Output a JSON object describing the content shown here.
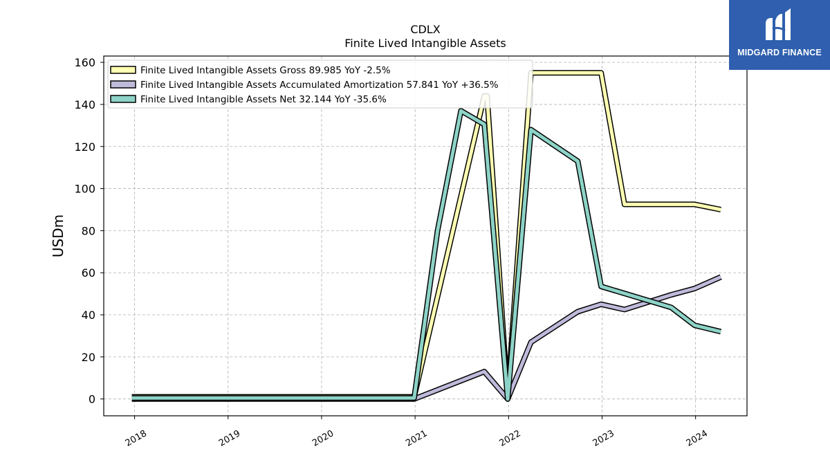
{
  "logo": {
    "text": "MIDGARD FINANCE",
    "background": "#2f5fae"
  },
  "chart_data": {
    "type": "line",
    "title": "CDLX",
    "subtitle": "Finite Lived Intangible Assets",
    "ylabel": "USDm",
    "xlabel": "",
    "ylim": [
      -8,
      163
    ],
    "xlim": [
      2017.67,
      2024.55
    ],
    "yticks": [
      0,
      20,
      40,
      60,
      80,
      100,
      120,
      140,
      160
    ],
    "xticks": [
      "2018",
      "2019",
      "2020",
      "2021",
      "2022",
      "2023",
      "2024"
    ],
    "grid": true,
    "legend_position": "top-left",
    "series": [
      {
        "name": "Finite Lived Intangible Assets Gross  89.985 YoY -2.5%",
        "color": "#ffffb3",
        "points": [
          [
            2017.97,
            1.0
          ],
          [
            2020.99,
            1.0
          ],
          [
            2021.74,
            144.0
          ],
          [
            2021.77,
            144.0
          ],
          [
            2021.99,
            1.0
          ],
          [
            2022.24,
            155.0
          ],
          [
            2022.99,
            155.0
          ],
          [
            2023.24,
            92.5
          ],
          [
            2023.99,
            92.5
          ],
          [
            2024.27,
            90.0
          ]
        ]
      },
      {
        "name": "Finite Lived Intangible Assets Accumulated Amortization  57.841 YoY +36.5%",
        "color": "#bebada",
        "points": [
          [
            2017.97,
            0.0
          ],
          [
            2020.99,
            0.0
          ],
          [
            2021.74,
            13.0
          ],
          [
            2021.99,
            0.0
          ],
          [
            2022.24,
            27.0
          ],
          [
            2022.74,
            41.5
          ],
          [
            2022.99,
            45.0
          ],
          [
            2023.24,
            42.5
          ],
          [
            2023.74,
            49.5
          ],
          [
            2023.99,
            52.5
          ],
          [
            2024.27,
            58.0
          ]
        ]
      },
      {
        "name": "Finite Lived Intangible Assets Net  32.144 YoY -35.6%",
        "color": "#8dd3c7",
        "points": [
          [
            2017.97,
            0.5
          ],
          [
            2020.99,
            0.5
          ],
          [
            2021.24,
            80.0
          ],
          [
            2021.49,
            137.0
          ],
          [
            2021.74,
            130.5
          ],
          [
            2021.99,
            0.0
          ],
          [
            2022.24,
            128.0
          ],
          [
            2022.74,
            113.0
          ],
          [
            2022.99,
            53.5
          ],
          [
            2023.74,
            43.5
          ],
          [
            2023.99,
            35.0
          ],
          [
            2024.27,
            32.0
          ]
        ]
      }
    ]
  }
}
